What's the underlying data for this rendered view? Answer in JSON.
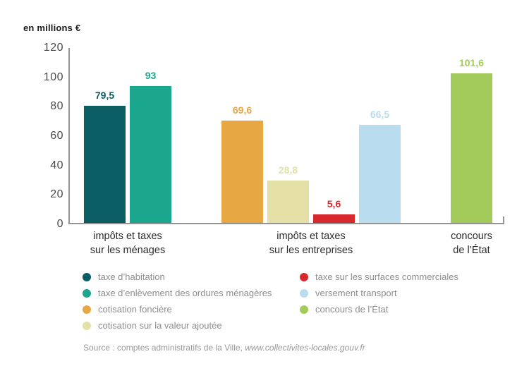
{
  "header": {
    "unit_label": "en millions €"
  },
  "chart_data": {
    "type": "bar",
    "title": "",
    "ylabel": "en millions €",
    "ylim": [
      0,
      120
    ],
    "yticks": [
      0,
      20,
      40,
      60,
      80,
      100,
      120
    ],
    "grid": false,
    "legend_position": "bottom",
    "groups": [
      {
        "label_lines": [
          "impôts et taxes",
          "sur les ménages"
        ],
        "bars": [
          {
            "name": "taxe d’habitation",
            "value": 79.5,
            "display": "79,5",
            "color": "#0a5d62"
          },
          {
            "name": "taxe d’enlèvement des ordures ménagères",
            "value": 93,
            "display": "93",
            "color": "#1aa78d"
          }
        ]
      },
      {
        "label_lines": [
          "impôts et taxes",
          "sur les entreprises"
        ],
        "bars": [
          {
            "name": "cotisation foncière",
            "value": 69.6,
            "display": "69,6",
            "color": "#e7a742"
          },
          {
            "name": "cotisation sur la valeur ajoutée",
            "value": 28.8,
            "display": "28,8",
            "color": "#e5e0a6"
          },
          {
            "name": "taxe sur les surfaces commerciales",
            "value": 5.6,
            "display": "5,6",
            "color": "#d7282d"
          },
          {
            "name": "versement transport",
            "value": 66.5,
            "display": "66,5",
            "color": "#b9dcee"
          }
        ]
      },
      {
        "label_lines": [
          "concours",
          "de l’État"
        ],
        "bars": [
          {
            "name": "concours de l’État",
            "value": 101.6,
            "display": "101,6",
            "color": "#a3cb5c"
          }
        ]
      }
    ],
    "legend_columns": [
      [
        {
          "label": "taxe d’habitation",
          "color": "#0a5d62"
        },
        {
          "label": "taxe d’enlèvement des ordures ménagères",
          "color": "#1aa78d"
        },
        {
          "label": "cotisation foncière",
          "color": "#e7a742"
        },
        {
          "label": "cotisation sur la valeur ajoutée",
          "color": "#e5e0a6"
        }
      ],
      [
        {
          "label": "taxe sur les surfaces commerciales",
          "color": "#d7282d"
        },
        {
          "label": "versement transport",
          "color": "#b9dcee"
        },
        {
          "label": "concours de l’État",
          "color": "#a3cb5c"
        }
      ]
    ]
  },
  "source": {
    "prefix": "Source : comptes administratifs de la Ville, ",
    "link": "www.collectivites-locales.gouv.fr"
  }
}
